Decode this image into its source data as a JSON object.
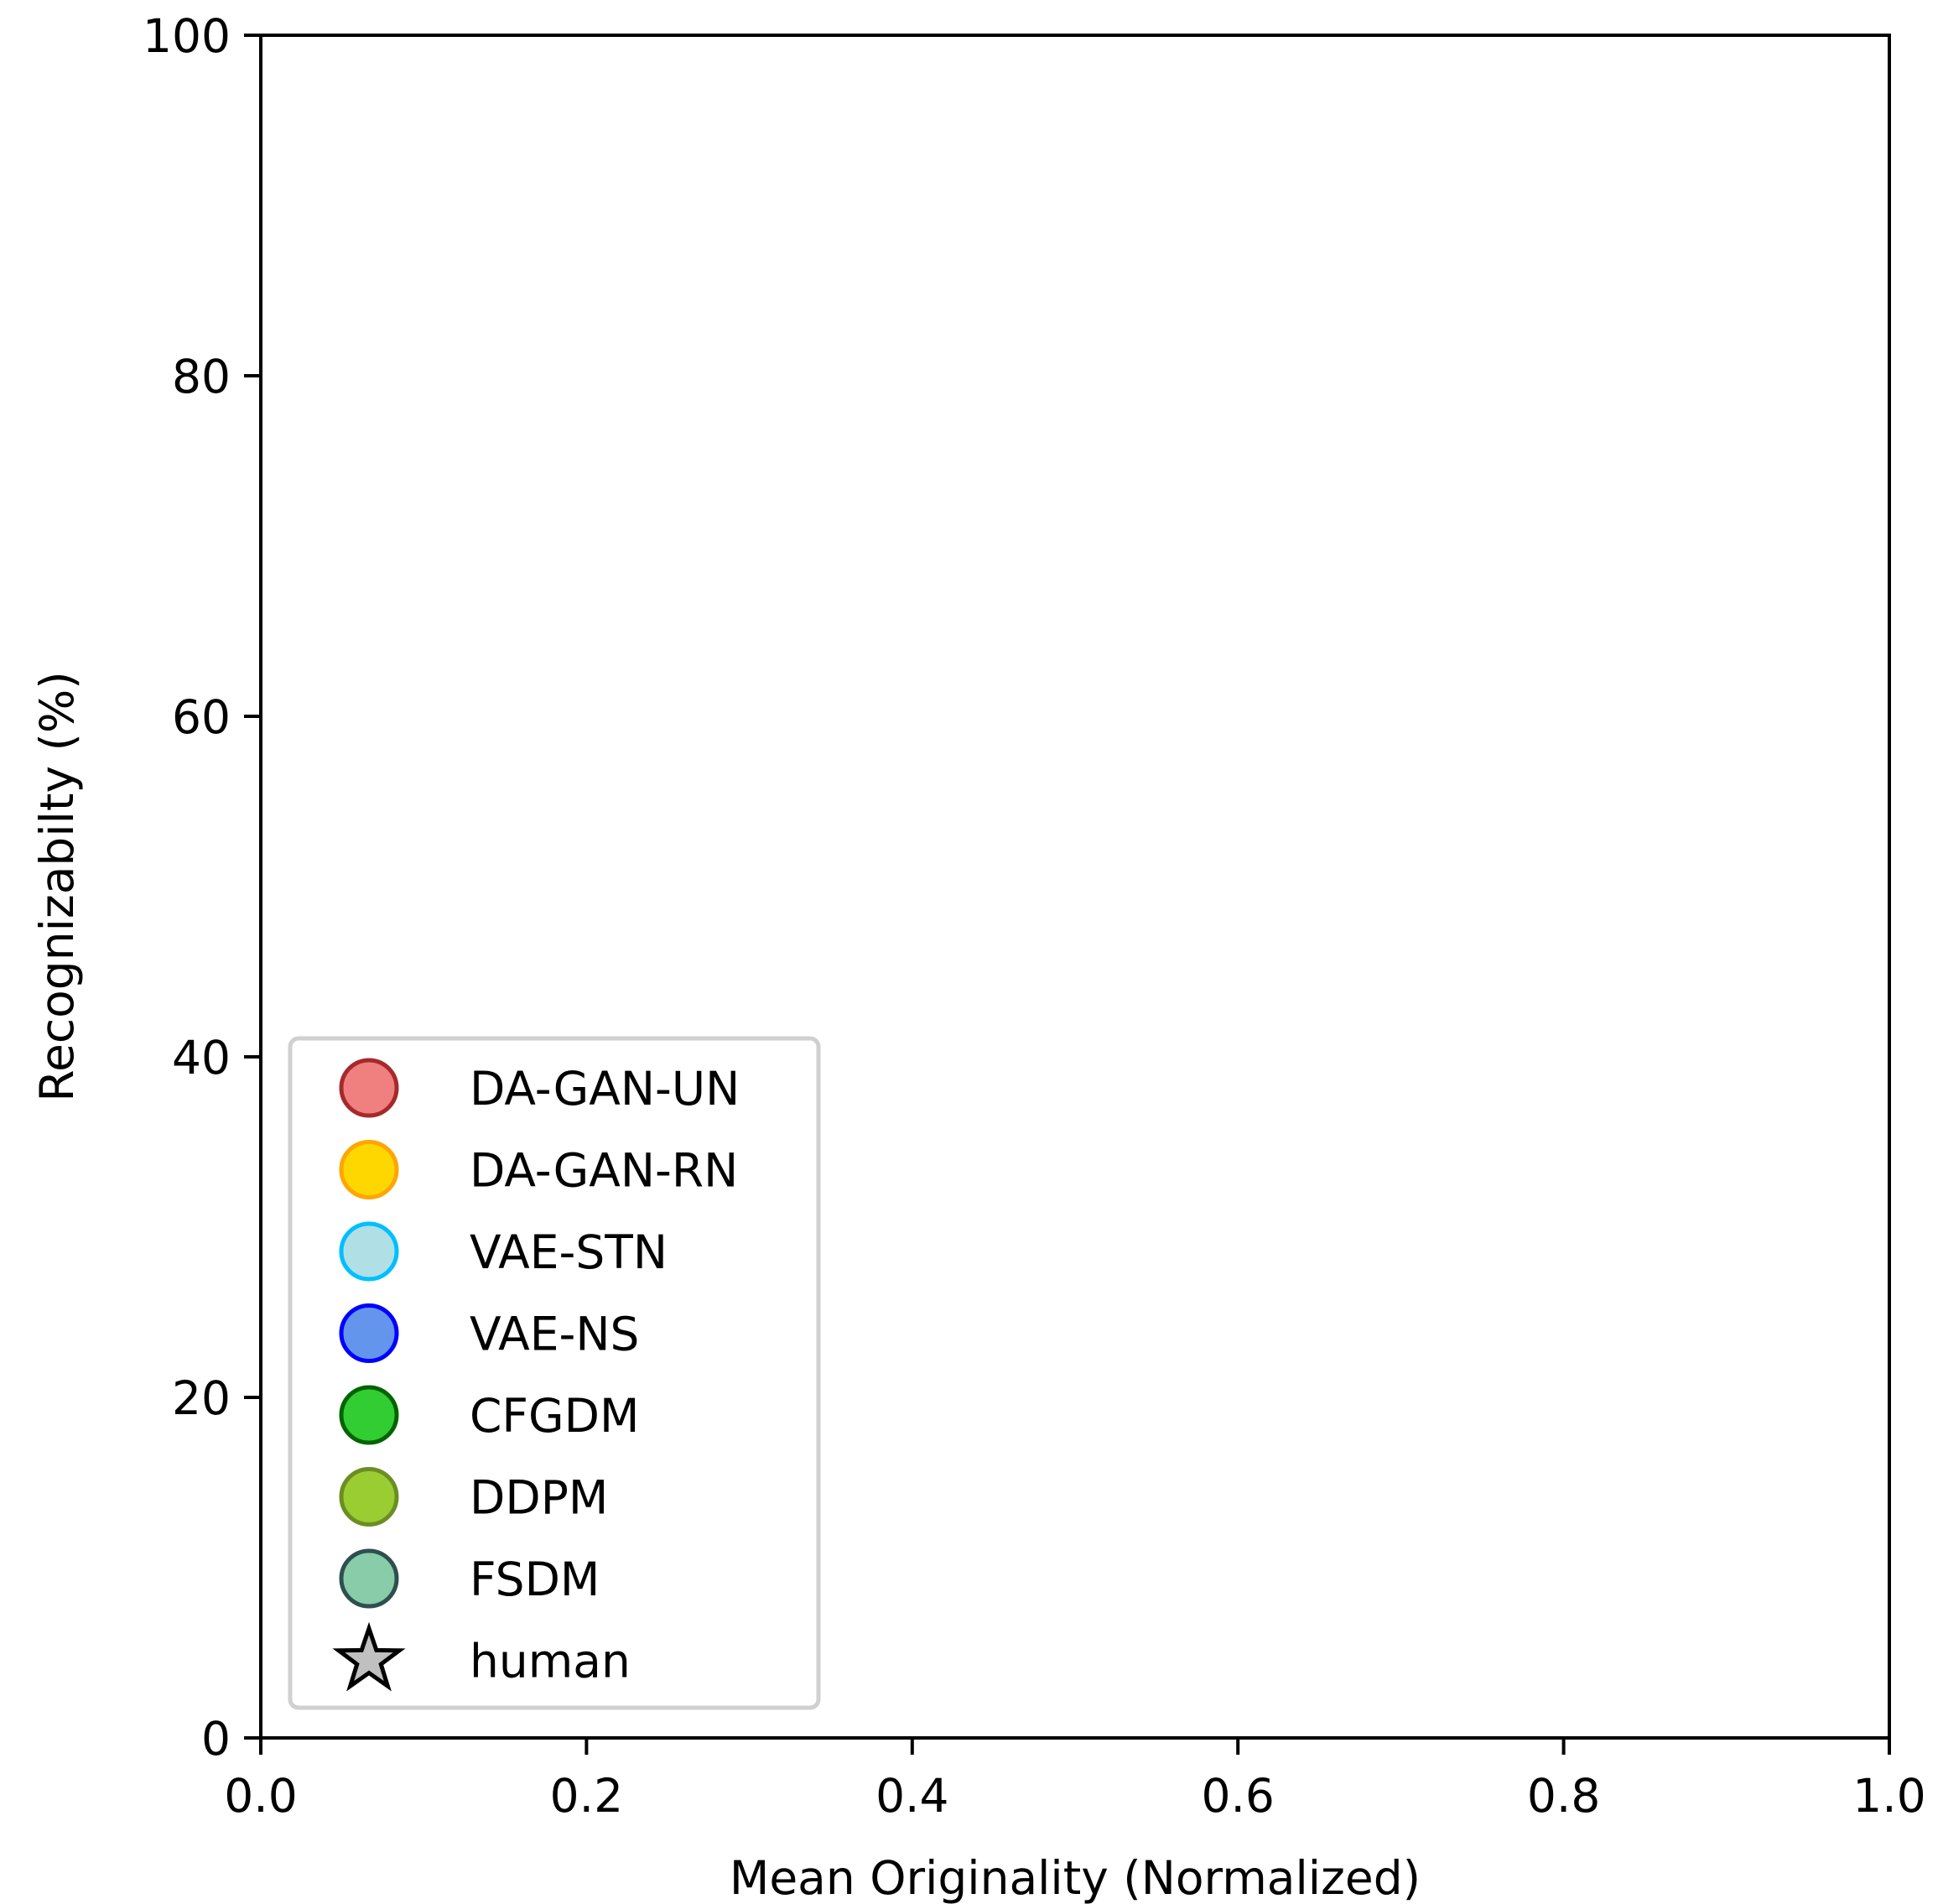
{
  "chart_data": {
    "type": "scatter",
    "title": "",
    "xlabel": "Mean Originality (Normalized)",
    "ylabel": "Recognizabilty (%)",
    "xlim": [
      0.0,
      1.0
    ],
    "ylim": [
      0,
      100
    ],
    "x_ticks": [
      "0.0",
      "0.2",
      "0.4",
      "0.6",
      "0.8",
      "1.0"
    ],
    "y_ticks": [
      "0",
      "20",
      "40",
      "60",
      "80",
      "100"
    ],
    "grid": false,
    "legend_position": "lower-left",
    "series": [
      {
        "name": "DA-GAN-UN",
        "marker": "circle",
        "fill": "#f08080",
        "edge": "#a52a2a",
        "points": []
      },
      {
        "name": "DA-GAN-RN",
        "marker": "circle",
        "fill": "#ffd700",
        "edge": "#ffa500",
        "points": []
      },
      {
        "name": "VAE-STN",
        "marker": "circle",
        "fill": "#b0e0e6",
        "edge": "#00bfff",
        "points": []
      },
      {
        "name": "VAE-NS",
        "marker": "circle",
        "fill": "#6495ed",
        "edge": "#0000ff",
        "points": []
      },
      {
        "name": "CFGDM",
        "marker": "circle",
        "fill": "#32cd32",
        "edge": "#006400",
        "points": []
      },
      {
        "name": "DDPM",
        "marker": "circle",
        "fill": "#9acd32",
        "edge": "#6b8e23",
        "points": []
      },
      {
        "name": "FSDM",
        "marker": "circle",
        "fill": "#88ccaa",
        "edge": "#2f4f4f",
        "points": []
      },
      {
        "name": "human",
        "marker": "star",
        "fill": "#c0c0c0",
        "edge": "#000000",
        "points": []
      }
    ]
  }
}
